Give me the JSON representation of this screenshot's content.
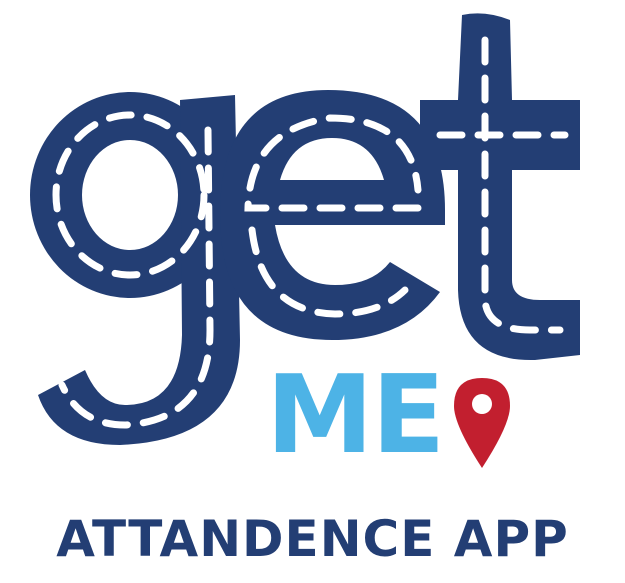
{
  "logo": {
    "wordmark": "get",
    "sub_mark": "ME",
    "colors": {
      "road_blue": "#233e74",
      "lane_white": "#ffffff",
      "me_blue": "#4db3e6",
      "pin_red": "#c21f2f"
    },
    "icon": "map-pin-icon"
  },
  "app": {
    "title": "ATTANDENCE APP"
  }
}
